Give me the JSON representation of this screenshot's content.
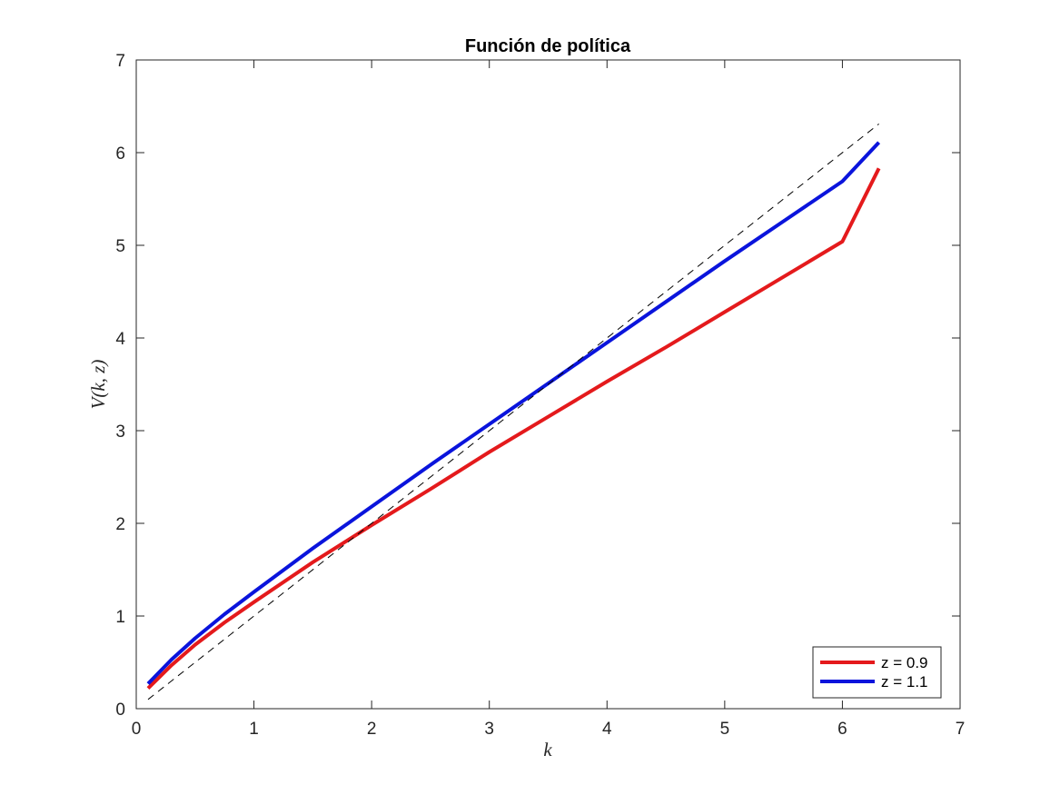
{
  "chart_data": {
    "type": "line",
    "title": "Función de política",
    "xlabel": "k",
    "ylabel": "V(k, z)",
    "xlim": [
      0,
      7
    ],
    "ylim": [
      0,
      7
    ],
    "xticks": [
      "0",
      "1",
      "2",
      "3",
      "4",
      "5",
      "6",
      "7"
    ],
    "yticks": [
      "0",
      "1",
      "2",
      "3",
      "4",
      "5",
      "6",
      "7"
    ],
    "grid": false,
    "legend_position": "bottom-right",
    "series": [
      {
        "name": "z = 0.9",
        "color": "#e41a1c",
        "x": [
          0.1,
          0.3,
          0.5,
          0.75,
          1.0,
          1.5,
          2.0,
          2.5,
          3.0,
          3.5,
          4.0,
          4.5,
          5.0,
          5.5,
          6.0,
          6.31
        ],
        "y": [
          0.22,
          0.47,
          0.69,
          0.93,
          1.15,
          1.58,
          1.98,
          2.37,
          2.77,
          3.15,
          3.53,
          3.9,
          4.28,
          4.66,
          5.04,
          5.83
        ]
      },
      {
        "name": "z = 1.1",
        "color": "#0a14dc",
        "x": [
          0.1,
          0.3,
          0.5,
          0.75,
          1.0,
          1.5,
          2.0,
          2.5,
          3.0,
          3.5,
          4.0,
          4.5,
          5.0,
          5.5,
          6.0,
          6.31
        ],
        "y": [
          0.27,
          0.53,
          0.76,
          1.02,
          1.26,
          1.73,
          2.18,
          2.63,
          3.07,
          3.51,
          3.95,
          4.39,
          4.83,
          5.26,
          5.69,
          6.11
        ]
      },
      {
        "name": "",
        "color": "#000000",
        "style": "dashed",
        "x": [
          0.1,
          6.31
        ],
        "y": [
          0.1,
          6.31
        ]
      }
    ]
  }
}
